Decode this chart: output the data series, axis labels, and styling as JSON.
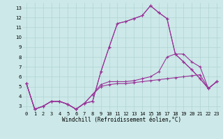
{
  "xlabel": "Windchill (Refroidissement éolien,°C)",
  "background_color": "#cce8e8",
  "line_color": "#993399",
  "xlim": [
    -0.5,
    23.5
  ],
  "ylim": [
    2.5,
    13.5
  ],
  "xticks": [
    0,
    1,
    2,
    3,
    4,
    5,
    6,
    7,
    8,
    9,
    10,
    11,
    12,
    13,
    14,
    15,
    16,
    17,
    18,
    19,
    20,
    21,
    22,
    23
  ],
  "yticks": [
    3,
    4,
    5,
    6,
    7,
    8,
    9,
    10,
    11,
    12,
    13
  ],
  "grid_color": "#aacfcf",
  "series": [
    [
      5.3,
      2.7,
      3.0,
      3.5,
      3.5,
      3.2,
      2.7,
      3.3,
      3.5,
      6.5,
      9.0,
      11.4,
      11.6,
      11.9,
      12.2,
      13.2,
      12.5,
      11.9,
      8.3,
      8.3,
      7.5,
      7.0,
      4.8,
      5.5
    ],
    [
      5.3,
      2.7,
      3.0,
      3.5,
      3.5,
      3.2,
      2.7,
      3.3,
      3.5,
      6.5,
      9.0,
      11.4,
      11.6,
      11.9,
      12.2,
      13.2,
      12.5,
      11.9,
      8.3,
      7.5,
      6.7,
      5.8,
      4.8,
      5.5
    ],
    [
      5.3,
      2.7,
      3.0,
      3.5,
      3.5,
      3.2,
      2.7,
      3.3,
      4.2,
      5.2,
      5.5,
      5.5,
      5.5,
      5.6,
      5.8,
      6.0,
      6.5,
      8.0,
      8.3,
      7.5,
      6.7,
      5.8,
      4.8,
      5.5
    ],
    [
      5.3,
      2.7,
      3.0,
      3.5,
      3.5,
      3.2,
      2.7,
      3.3,
      4.2,
      5.0,
      5.2,
      5.3,
      5.3,
      5.4,
      5.5,
      5.6,
      5.7,
      5.8,
      5.9,
      6.0,
      6.1,
      6.2,
      4.8,
      5.5
    ]
  ],
  "tick_fontsize": 5,
  "xlabel_fontsize": 5.5,
  "marker": "+",
  "markersize": 3,
  "linewidth": 0.8
}
